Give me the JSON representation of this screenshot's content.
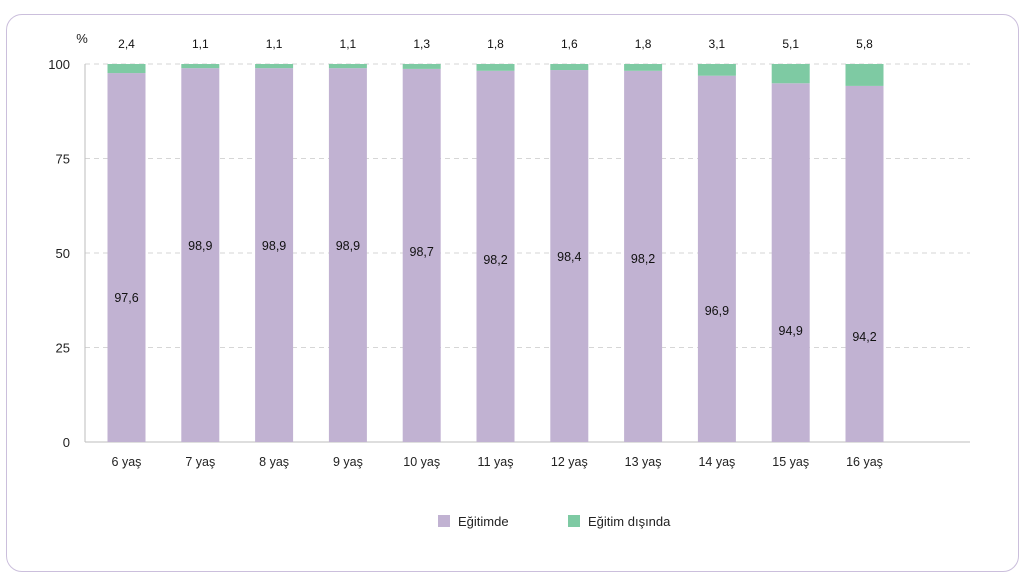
{
  "chart_data": {
    "type": "bar",
    "stacked": true,
    "unit_label": "%",
    "categories": [
      "6 yaş",
      "7 yaş",
      "8 yaş",
      "9 yaş",
      "10 yaş",
      "11 yaş",
      "12 yaş",
      "13 yaş",
      "14 yaş",
      "15 yaş",
      "16 yaş"
    ],
    "value_labels_bottom": [
      "97,6",
      "98,9",
      "98,9",
      "98,9",
      "98,7",
      "98,2",
      "98,4",
      "98,2",
      "96,9",
      "94,9",
      "94,2"
    ],
    "value_labels_top": [
      "2,4",
      "1,1",
      "1,1",
      "1,1",
      "1,3",
      "1,8",
      "1,6",
      "1,8",
      "3,1",
      "5,1",
      "5,8"
    ],
    "series": [
      {
        "name": "Eğitimde",
        "values": [
          97.6,
          98.9,
          98.9,
          98.9,
          98.7,
          98.2,
          98.4,
          98.2,
          96.9,
          94.9,
          94.2
        ],
        "color": "#c1b2d2"
      },
      {
        "name": "Eğitim dışında",
        "values": [
          2.4,
          1.1,
          1.1,
          1.1,
          1.3,
          1.8,
          1.6,
          1.8,
          3.1,
          5.1,
          5.8
        ],
        "color": "#7ecaa3"
      }
    ],
    "ylim": [
      0,
      100
    ],
    "yticks": [
      "0",
      "25",
      "50",
      "75",
      "100"
    ],
    "grid": true,
    "legend_position": "bottom"
  }
}
